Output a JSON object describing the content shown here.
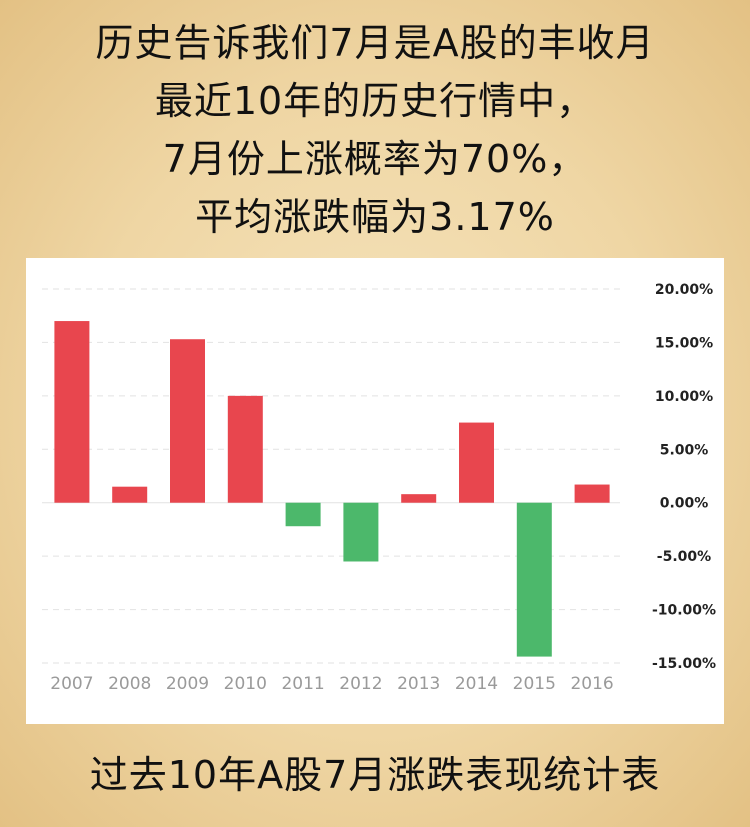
{
  "headline": {
    "lines": [
      "历史告诉我们7月是A股的丰收月",
      "最近10年的历史行情中，",
      "7月份上涨概率为70%，",
      "平均涨跌幅为3.17%"
    ]
  },
  "footer": {
    "caption": "过去10年A股7月涨跌表现统计表"
  },
  "colors": {
    "up": "#e8464e",
    "down": "#4cb86b",
    "grid": "#e2e2e2"
  },
  "chart_data": {
    "type": "bar",
    "title": "",
    "xlabel": "",
    "ylabel": "",
    "categories": [
      "2007",
      "2008",
      "2009",
      "2010",
      "2011",
      "2012",
      "2013",
      "2014",
      "2015",
      "2016"
    ],
    "values": [
      17.0,
      1.5,
      15.3,
      10.0,
      -2.2,
      -5.5,
      0.8,
      7.5,
      -14.4,
      1.7
    ],
    "value_unit": "%",
    "ylim": [
      -15,
      20
    ],
    "yticks": [
      20,
      15,
      10,
      5,
      0,
      -5,
      -10,
      -15
    ],
    "ytick_labels": [
      "20.00%",
      "15.00%",
      "10.00%",
      "5.00%",
      "0.00%",
      "-5.00%",
      "-10.00%",
      "-15.00%"
    ],
    "y_axis_position": "right",
    "grid": true,
    "grid_style": "dashed",
    "legend": "none"
  }
}
